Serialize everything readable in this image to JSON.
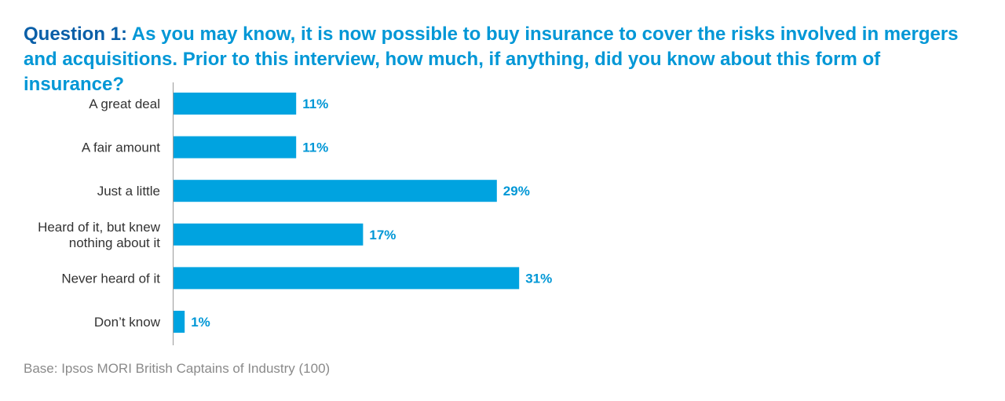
{
  "header": {
    "question_label": "Question 1:",
    "question_text": " As you may know, it is now possible to buy insurance to cover the risks involved in mergers and acquisitions. Prior to this interview, how much, if anything, did you know about this form of insurance?"
  },
  "footer": {
    "base_note": "Base: Ipsos MORI British Captains of Industry (100)"
  },
  "colors": {
    "bar": "#00a3e0",
    "value_label": "#0097d6",
    "title": "#0097d6",
    "title_bold": "#0a5fa8"
  },
  "chart_data": {
    "type": "bar",
    "orientation": "horizontal",
    "categories": [
      [
        "A great deal"
      ],
      [
        "A fair amount"
      ],
      [
        "Just a little"
      ],
      [
        "Heard of it, but knew",
        "nothing about it"
      ],
      [
        "Never heard of it"
      ],
      [
        "Don’t know"
      ]
    ],
    "values": [
      11,
      11,
      29,
      17,
      31,
      1
    ],
    "value_labels": [
      "11%",
      "11%",
      "29%",
      "17%",
      "31%",
      "1%"
    ],
    "unit": "%",
    "xlim": [
      0,
      100
    ],
    "grid": false,
    "legend": "none"
  }
}
